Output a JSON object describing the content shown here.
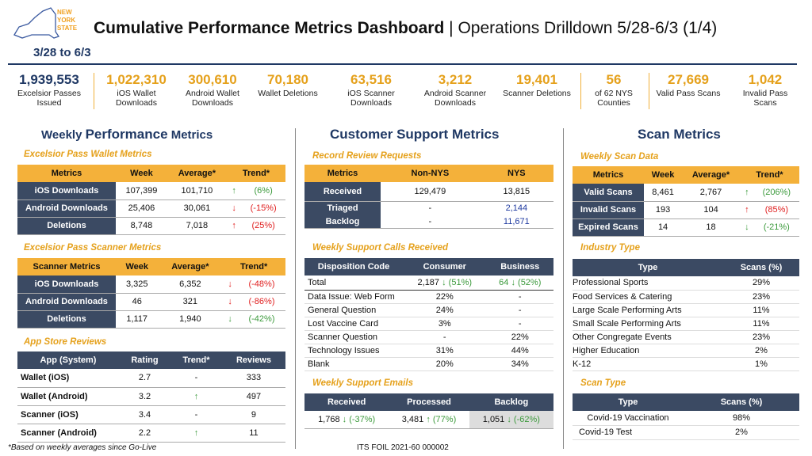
{
  "header": {
    "logo_text": "NEW YORK STATE",
    "title": "Cumulative Performance Metrics Dashboard",
    "separator": "|",
    "subtitle": "Operations Drilldown 5/28-6/3 (1/4)",
    "daterange": "3/28 to 6/3"
  },
  "kpis": [
    {
      "value": "1,939,553",
      "label": "Excelsior Passes Issued"
    },
    {
      "value": "1,022,310",
      "label": "iOS Wallet Downloads"
    },
    {
      "value": "300,610",
      "label": "Android Wallet Downloads"
    },
    {
      "value": "70,180",
      "label": "Wallet Deletions"
    },
    {
      "value": "63,516",
      "label": "iOS Scanner Downloads"
    },
    {
      "value": "3,212",
      "label": "Android Scanner Downloads"
    },
    {
      "value": "19,401",
      "label": "Scanner Deletions"
    },
    {
      "value": "56",
      "label": "of 62 NYS Counties"
    },
    {
      "value": "27,669",
      "label": "Valid Pass Scans"
    },
    {
      "value": "1,042",
      "label": "Invalid Pass Scans"
    }
  ],
  "weekly": {
    "title_a": "Weekly ",
    "title_b": "Performance",
    "title_c": " Metrics",
    "wallet": {
      "title": "Excelsior Pass Wallet Metrics",
      "headers": [
        "Metrics",
        "Week",
        "Average*",
        "Trend*"
      ],
      "rows": [
        [
          "iOS Downloads",
          "107,399",
          "101,710",
          "↑",
          "(6%)"
        ],
        [
          "Android Downloads",
          "25,406",
          "30,061",
          "↓",
          "(-15%)"
        ],
        [
          "Deletions",
          "8,748",
          "7,018",
          "↑",
          "(25%)"
        ]
      ]
    },
    "scanner": {
      "title": "Excelsior Pass Scanner Metrics",
      "headers": [
        "Scanner Metrics",
        "Week",
        "Average*",
        "Trend*"
      ],
      "rows": [
        [
          "iOS Downloads",
          "3,325",
          "6,352",
          "↓",
          "(-48%)"
        ],
        [
          "Android Downloads",
          "46",
          "321",
          "↓",
          "(-86%)"
        ],
        [
          "Deletions",
          "1,117",
          "1,940",
          "↓",
          "(-42%)"
        ]
      ]
    },
    "reviews": {
      "title": "App Store Reviews",
      "headers": [
        "App (System)",
        "Rating",
        "Trend*",
        "Reviews"
      ],
      "rows": [
        [
          "Wallet (iOS)",
          "2.7",
          "-",
          "333"
        ],
        [
          "Wallet (Android)",
          "3.2",
          "↑",
          "497"
        ],
        [
          "Scanner (iOS)",
          "3.4",
          "-",
          "9"
        ],
        [
          "Scanner (Android)",
          "2.2",
          "↑",
          "11"
        ]
      ]
    },
    "footnote": "*Based on weekly averages since Go-Live"
  },
  "support": {
    "title": "Customer Support Metrics",
    "record": {
      "title": "Record Review Requests",
      "headers": [
        "Metrics",
        "Non-NYS",
        "NYS"
      ],
      "rows": [
        [
          "Received",
          "129,479",
          "13,815"
        ],
        [
          "Triaged",
          "-",
          "2,144"
        ],
        [
          "Backlog",
          "-",
          "11,671"
        ]
      ]
    },
    "calls": {
      "title": "Weekly Support Calls Received",
      "headers": [
        "Disposition Code",
        "Consumer",
        "Business"
      ],
      "total": {
        "label": "Total",
        "consumer": "2,187",
        "consumer_trend": "↓ (51%)",
        "business": "64",
        "business_trend": "↓ (52%)"
      },
      "rows": [
        [
          "Data Issue: Web Form",
          "22%",
          "-"
        ],
        [
          "General Question",
          "24%",
          "-"
        ],
        [
          "Lost Vaccine Card",
          "3%",
          "-"
        ],
        [
          "Scanner Question",
          "-",
          "22%"
        ],
        [
          "Technology Issues",
          "31%",
          "44%"
        ],
        [
          "Blank",
          "20%",
          "34%"
        ]
      ]
    },
    "emails": {
      "title": "Weekly Support Emails",
      "headers": [
        "Received",
        "Processed",
        "Backlog"
      ],
      "row": [
        [
          "1,768",
          "↓ (-37%)"
        ],
        [
          "3,481",
          "↑ (77%)"
        ],
        [
          "1,051",
          "↓ (-62%)"
        ]
      ]
    },
    "foil": "ITS FOIL 2021-60 000002"
  },
  "scan": {
    "title": "Scan Metrics",
    "weekly": {
      "title": "Weekly Scan Data",
      "headers": [
        "Metrics",
        "Week",
        "Average*",
        "Trend*"
      ],
      "rows": [
        [
          "Valid Scans",
          "8,461",
          "2,767",
          "↑",
          "(206%)"
        ],
        [
          "Invalid Scans",
          "193",
          "104",
          "↑",
          "(85%)"
        ],
        [
          "Expired Scans",
          "14",
          "18",
          "↓",
          "(-21%)"
        ]
      ]
    },
    "industry": {
      "title": "Industry Type",
      "headers": [
        "Type",
        "Scans (%)"
      ],
      "rows": [
        [
          "Professional Sports",
          "29%"
        ],
        [
          "Food Services & Catering",
          "23%"
        ],
        [
          "Large Scale Performing Arts",
          "11%"
        ],
        [
          "Small Scale Performing Arts",
          "11%"
        ],
        [
          "Other Congregate Events",
          "23%"
        ],
        [
          "Higher Education",
          "2%"
        ],
        [
          "K-12",
          "1%"
        ]
      ]
    },
    "scantype": {
      "title": "Scan Type",
      "headers": [
        "Type",
        "Scans (%)"
      ],
      "rows": [
        [
          "Covid-19 Vaccination",
          "98%"
        ],
        [
          "Covid-19 Test",
          "2%"
        ]
      ]
    }
  }
}
